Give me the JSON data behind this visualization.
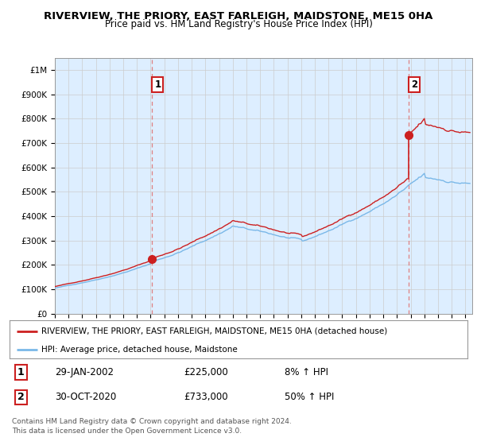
{
  "title": "RIVERVIEW, THE PRIORY, EAST FARLEIGH, MAIDSTONE, ME15 0HA",
  "subtitle": "Price paid vs. HM Land Registry's House Price Index (HPI)",
  "title_fontsize": 9.5,
  "subtitle_fontsize": 8.5,
  "ylabel_ticks": [
    "£0",
    "£100K",
    "£200K",
    "£300K",
    "£400K",
    "£500K",
    "£600K",
    "£700K",
    "£800K",
    "£900K",
    "£1M"
  ],
  "ytick_vals": [
    0,
    100000,
    200000,
    300000,
    400000,
    500000,
    600000,
    700000,
    800000,
    900000,
    1000000
  ],
  "ylim": [
    0,
    1050000
  ],
  "xlim_start": 1995.0,
  "xlim_end": 2025.5,
  "xtick_years": [
    1995,
    1996,
    1997,
    1998,
    1999,
    2000,
    2001,
    2002,
    2003,
    2004,
    2005,
    2006,
    2007,
    2008,
    2009,
    2010,
    2011,
    2012,
    2013,
    2014,
    2015,
    2016,
    2017,
    2018,
    2019,
    2020,
    2021,
    2022,
    2023,
    2024,
    2025
  ],
  "chart_bg_color": "#ddeeff",
  "hpi_color": "#7ab8e8",
  "price_color": "#cc2020",
  "annotation_color": "#cc2020",
  "vline_color": "#e08080",
  "legend_price_label": "RIVERVIEW, THE PRIORY, EAST FARLEIGH, MAIDSTONE, ME15 0HA (detached house)",
  "legend_hpi_label": "HPI: Average price, detached house, Maidstone",
  "annotation1_date": "29-JAN-2002",
  "annotation1_price": "£225,000",
  "annotation1_hpi": "8% ↑ HPI",
  "annotation2_date": "30-OCT-2020",
  "annotation2_price": "£733,000",
  "annotation2_hpi": "50% ↑ HPI",
  "footer1": "Contains HM Land Registry data © Crown copyright and database right 2024.",
  "footer2": "This data is licensed under the Open Government Licence v3.0.",
  "sale1_x": 2002.08,
  "sale1_y": 225000,
  "sale2_x": 2020.83,
  "sale2_y": 733000,
  "background_color": "#ffffff",
  "grid_color": "#cccccc"
}
